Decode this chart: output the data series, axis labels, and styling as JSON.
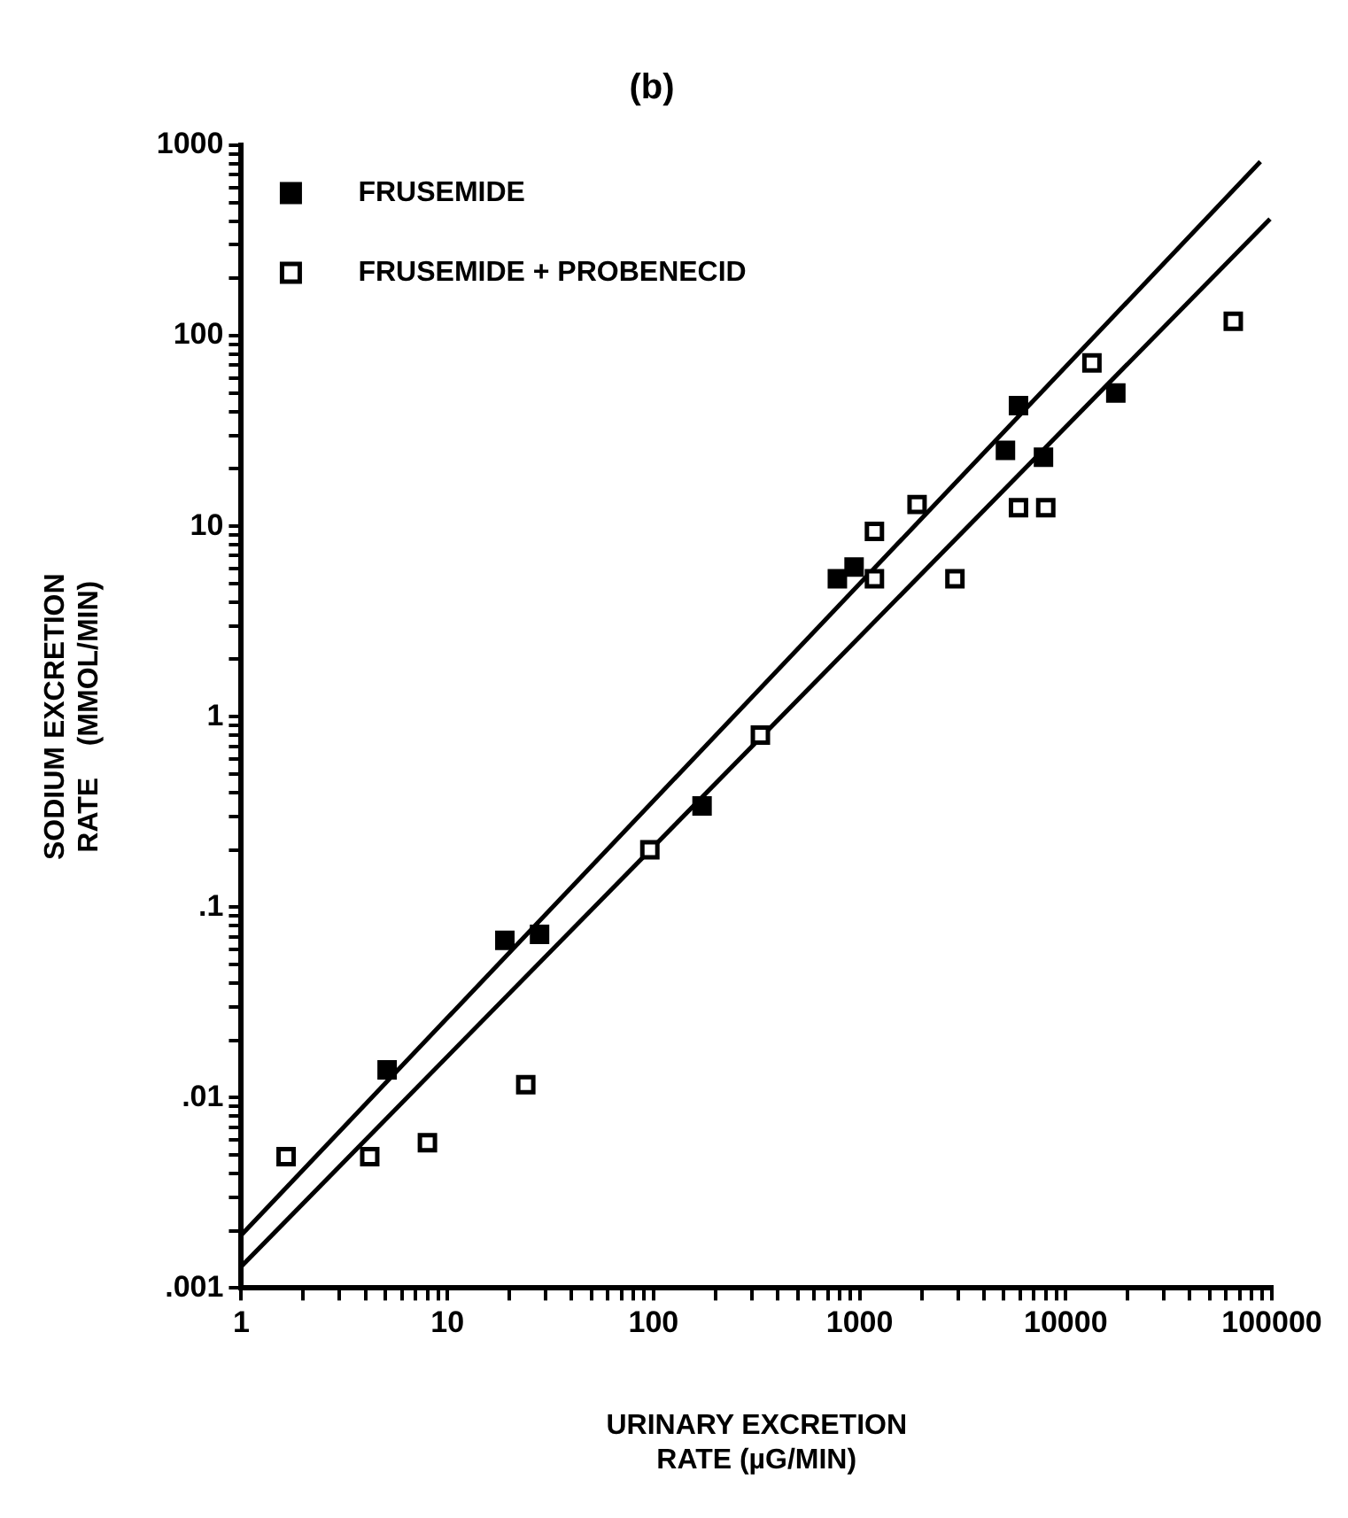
{
  "chart_data": {
    "type": "scatter",
    "title": "(b)",
    "xlabel": "URINARY EXCRETION\nRATE (µG/MIN)",
    "ylabel": "SODIUM EXCRETION\nRATE    (MMOL/MIN)",
    "log": "xy",
    "grid": false,
    "legend": "top left",
    "xlim": [
      1,
      100000
    ],
    "ylim": [
      0.001,
      1000
    ],
    "xticks": [
      1,
      {
        "value": 2,
        "label": null
      },
      {
        "value": 3,
        "label": null
      },
      {
        "value": 4,
        "label": null
      },
      {
        "value": 5,
        "label": null
      },
      {
        "value": 6,
        "label": null
      },
      {
        "value": 7,
        "label": null
      },
      {
        "value": 8,
        "label": null
      },
      {
        "value": 9,
        "label": null
      },
      10,
      {
        "value": 20,
        "label": null
      },
      {
        "value": 30,
        "label": null
      },
      {
        "value": 40,
        "label": null
      },
      {
        "value": 50,
        "label": null
      },
      {
        "value": 60,
        "label": null
      },
      {
        "value": 70,
        "label": null
      },
      {
        "value": 80,
        "label": null
      },
      {
        "value": 90,
        "label": null
      },
      100,
      {
        "value": 200,
        "label": null
      },
      {
        "value": 300,
        "label": null
      },
      {
        "value": 400,
        "label": null
      },
      {
        "value": 500,
        "label": null
      },
      {
        "value": 600,
        "label": null
      },
      {
        "value": 700,
        "label": null
      },
      {
        "value": 800,
        "label": null
      },
      {
        "value": 900,
        "label": null
      },
      1000,
      {
        "value": 2000,
        "label": null
      },
      {
        "value": 3000,
        "label": null
      },
      {
        "value": 4000,
        "label": null
      },
      {
        "value": 5000,
        "label": null
      },
      {
        "value": 6000,
        "label": null
      },
      {
        "value": 7000,
        "label": null
      },
      {
        "value": 8000,
        "label": null
      },
      {
        "value": 9000,
        "label": null
      },
      10000,
      {
        "value": 20000,
        "label": null
      },
      {
        "value": 30000,
        "label": null
      },
      {
        "value": 40000,
        "label": null
      },
      {
        "value": 50000,
        "label": null
      },
      {
        "value": 60000,
        "label": null
      },
      {
        "value": 70000,
        "label": null
      },
      {
        "value": 80000,
        "label": null
      },
      {
        "value": 90000,
        "label": null
      },
      100000
    ],
    "yticks": [
      {
        "value": 0.001,
        "label": ".001"
      },
      {
        "value": 0.002,
        "label": null
      },
      {
        "value": 0.003,
        "label": null
      },
      {
        "value": 0.004,
        "label": null
      },
      {
        "value": 0.005,
        "label": null
      },
      {
        "value": 0.006,
        "label": null
      },
      {
        "value": 0.007,
        "label": null
      },
      {
        "value": 0.008,
        "label": null
      },
      {
        "value": 0.009,
        "label": null
      },
      {
        "value": 0.01,
        "label": ".01"
      },
      {
        "value": 0.02,
        "label": null
      },
      {
        "value": 0.03,
        "label": null
      },
      {
        "value": 0.04,
        "label": null
      },
      {
        "value": 0.05,
        "label": null
      },
      {
        "value": 0.06,
        "label": null
      },
      {
        "value": 0.07,
        "label": null
      },
      {
        "value": 0.08,
        "label": null
      },
      {
        "value": 0.09,
        "label": null
      },
      {
        "value": 0.1,
        "label": ".1"
      },
      {
        "value": 0.2,
        "label": null
      },
      {
        "value": 0.3,
        "label": null
      },
      {
        "value": 0.4,
        "label": null
      },
      {
        "value": 0.5,
        "label": null
      },
      {
        "value": 0.6,
        "label": null
      },
      {
        "value": 0.7,
        "label": null
      },
      {
        "value": 0.8,
        "label": null
      },
      {
        "value": 0.9,
        "label": null
      },
      1,
      {
        "value": 2,
        "label": null
      },
      {
        "value": 3,
        "label": null
      },
      {
        "value": 4,
        "label": null
      },
      {
        "value": 5,
        "label": null
      },
      {
        "value": 6,
        "label": null
      },
      {
        "value": 7,
        "label": null
      },
      {
        "value": 8,
        "label": null
      },
      {
        "value": 9,
        "label": null
      },
      10,
      {
        "value": 20,
        "label": null
      },
      {
        "value": 30,
        "label": null
      },
      {
        "value": 40,
        "label": null
      },
      {
        "value": 50,
        "label": null
      },
      {
        "value": 60,
        "label": null
      },
      {
        "value": 70,
        "label": null
      },
      {
        "value": 80,
        "label": null
      },
      {
        "value": 90,
        "label": null
      },
      100,
      {
        "value": 200,
        "label": null
      },
      {
        "value": 300,
        "label": null
      },
      {
        "value": 400,
        "label": null
      },
      {
        "value": 500,
        "label": null
      },
      {
        "value": 600,
        "label": null
      },
      {
        "value": 700,
        "label": null
      },
      {
        "value": 800,
        "label": null
      },
      {
        "value": 900,
        "label": null
      },
      1000
    ],
    "series": [
      {
        "name": "FRUSEMIDE",
        "color": "#000000",
        "marker": "square",
        "x": [
          5.1,
          19,
          28,
          172,
          780,
          940,
          5100,
          5900,
          7800,
          17500
        ],
        "values": [
          0.014,
          0.067,
          0.072,
          0.34,
          5.3,
          6.1,
          25,
          43,
          23,
          50
        ]
      },
      {
        "name": "FRUSEMIDE + PROBENECID",
        "color": "#000000",
        "marker": "square",
        "x": [
          1.65,
          4.2,
          8,
          24,
          96,
          330,
          1180,
          1180,
          1900,
          2900,
          5900,
          8000,
          13400,
          65000
        ],
        "values": [
          0.0049,
          0.0049,
          0.0058,
          0.0117,
          0.2,
          0.8,
          9.4,
          5.3,
          13,
          5.3,
          12.5,
          12.5,
          72,
          119
        ]
      },
      {
        "type": "line",
        "color": "#000000",
        "marker": "none",
        "x": [
          1,
          88000
        ],
        "values": [
          0.0019,
          820
        ]
      },
      {
        "type": "line",
        "color": "#000000",
        "marker": "none",
        "x": [
          1,
          98000
        ],
        "values": [
          0.0013,
          410
        ]
      }
    ]
  }
}
